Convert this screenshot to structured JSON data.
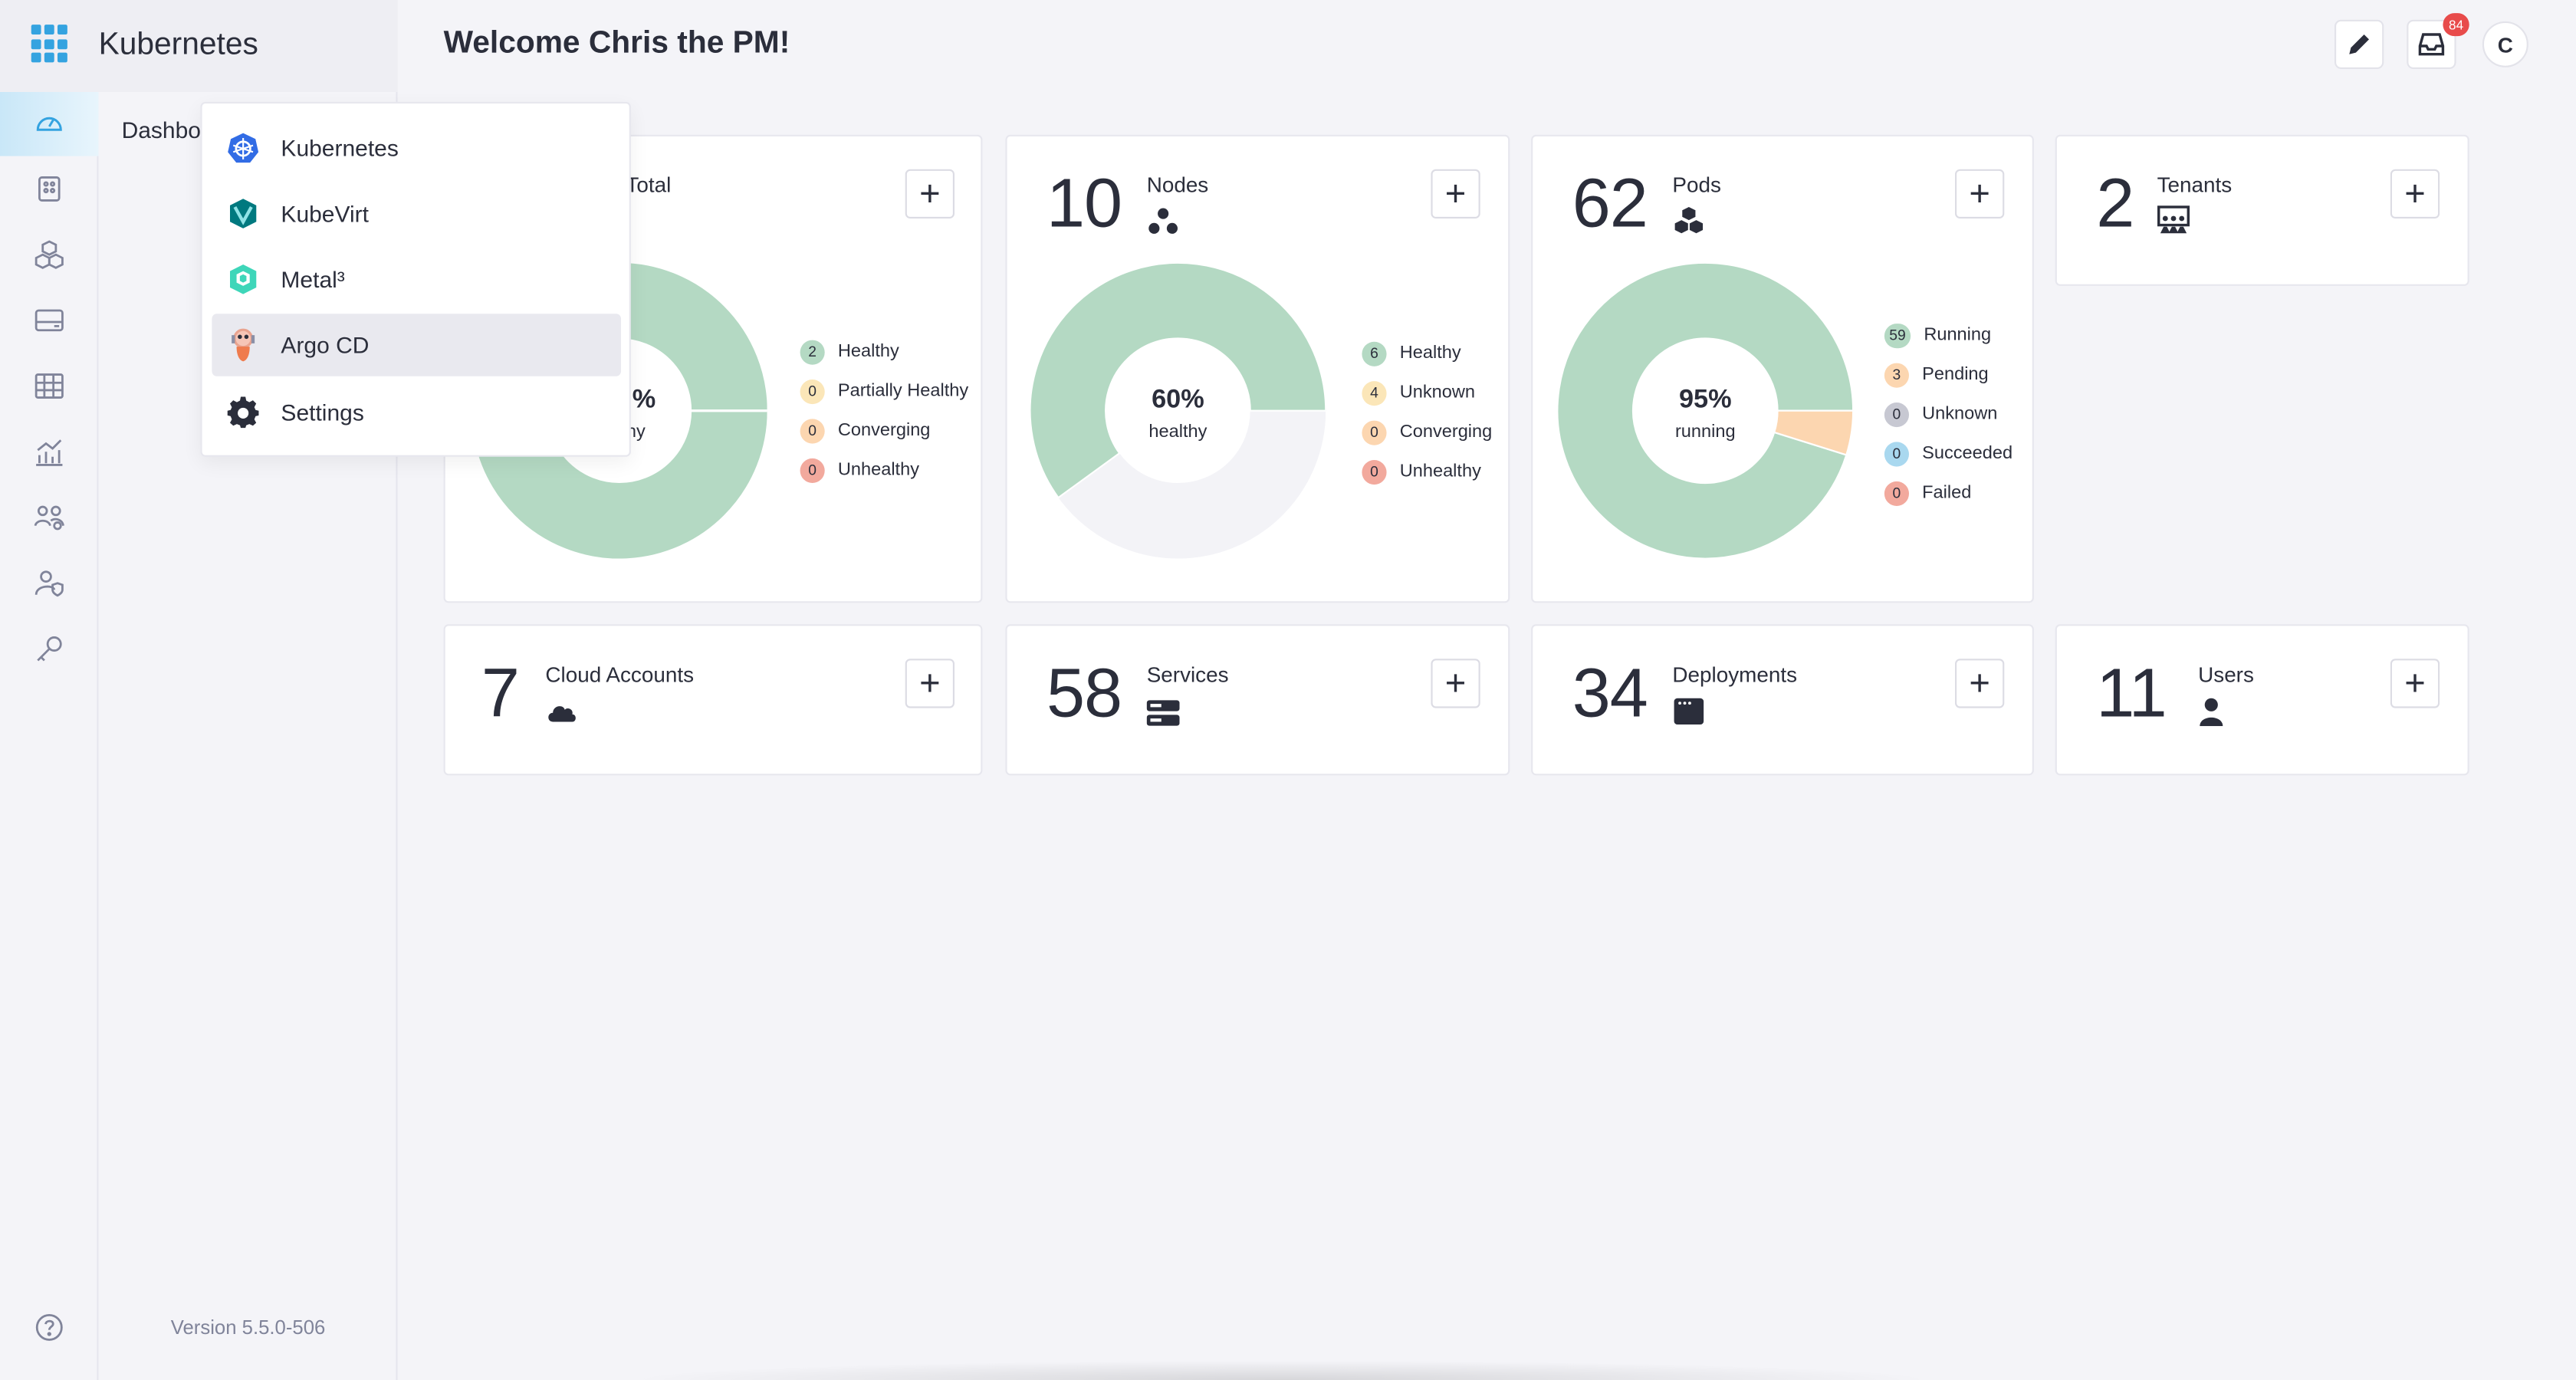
{
  "app": {
    "brand_title": "Kubernetes",
    "version": "Version 5.5.0-506"
  },
  "header": {
    "welcome": "Welcome Chris the PM!",
    "notification_count": "84",
    "avatar_initial": "C"
  },
  "sidebar": {
    "dashboard_label": "Dashbo"
  },
  "menu": {
    "items": [
      {
        "label": "Kubernetes",
        "icon": "kubernetes-icon"
      },
      {
        "label": "KubeVirt",
        "icon": "kubevirt-icon"
      },
      {
        "label": "Metal³",
        "icon": "metal3-icon"
      },
      {
        "label": "Argo CD",
        "icon": "argocd-icon"
      },
      {
        "label": "Settings",
        "icon": "gear-icon"
      }
    ],
    "selected": "Argo CD"
  },
  "cards": {
    "clusters": {
      "title": "Total",
      "pct": "%",
      "sub": "hy",
      "legend": [
        {
          "count": "2",
          "label": "Healthy",
          "color": "#b4d9c3"
        },
        {
          "count": "0",
          "label": "Partially Healthy",
          "color": "#fbe6b8"
        },
        {
          "count": "0",
          "label": "Converging",
          "color": "#fcd6b0"
        },
        {
          "count": "0",
          "label": "Unhealthy",
          "color": "#f2a99d"
        }
      ]
    },
    "nodes": {
      "count": "10",
      "title": "Nodes",
      "pct": "60%",
      "sub": "healthy",
      "legend": [
        {
          "count": "6",
          "label": "Healthy",
          "color": "#b4d9c3"
        },
        {
          "count": "4",
          "label": "Unknown",
          "color": "#fbe6b8"
        },
        {
          "count": "0",
          "label": "Converging",
          "color": "#fcd6b0"
        },
        {
          "count": "0",
          "label": "Unhealthy",
          "color": "#f2a99d"
        }
      ]
    },
    "pods": {
      "count": "62",
      "title": "Pods",
      "pct": "95%",
      "sub": "running",
      "legend": [
        {
          "count": "59",
          "label": "Running",
          "color": "#b4d9c3"
        },
        {
          "count": "3",
          "label": "Pending",
          "color": "#fcd6b0"
        },
        {
          "count": "0",
          "label": "Unknown",
          "color": "#c7c8d2"
        },
        {
          "count": "0",
          "label": "Succeeded",
          "color": "#a9d8ef"
        },
        {
          "count": "0",
          "label": "Failed",
          "color": "#f2a99d"
        }
      ]
    },
    "tenants": {
      "count": "2",
      "title": "Tenants"
    },
    "cloud_accounts": {
      "count": "7",
      "title": "Cloud Accounts"
    },
    "services": {
      "count": "58",
      "title": "Services"
    },
    "deployments": {
      "count": "34",
      "title": "Deployments"
    },
    "users": {
      "count": "11",
      "title": "Users"
    }
  },
  "colors": {
    "green": "#b4d9c3",
    "orange": "#fcd6b0",
    "empty": "#f3f3f7",
    "accent": "#34a3e0"
  }
}
